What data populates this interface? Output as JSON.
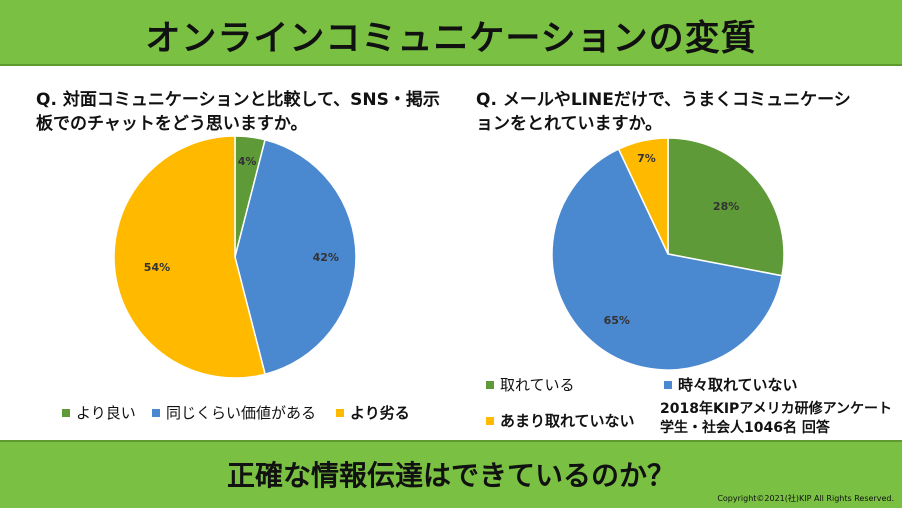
{
  "header": {
    "title": "オンラインコミュニケーションの変質"
  },
  "footer": {
    "title": "正確な情報伝達はできているのか？",
    "copyright": "Copyright©2021(社)KIP All Rights Reserved."
  },
  "chart_data": [
    {
      "type": "pie",
      "title": "Q. 対面コミュニケーションと比較して、SNS・掲示板でのチャットをどう思いますか。",
      "categories": [
        "より良い",
        "同じくらい価値がある",
        "より劣る"
      ],
      "values": [
        4,
        42,
        54
      ],
      "data_labels": [
        "4%",
        "42%",
        "54%"
      ],
      "colors": [
        "#5e9a37",
        "#4a88d0",
        "#ffba00"
      ],
      "legend": "bottom"
    },
    {
      "type": "pie",
      "title": "Q. メールやLINEだけで、うまくコミュニケーションをとれていますか。",
      "categories": [
        "取れている",
        "時々取れていない",
        "あまり取れていない"
      ],
      "values": [
        28,
        65,
        7
      ],
      "data_labels": [
        "28%",
        "65%",
        "7%"
      ],
      "colors": [
        "#5e9a37",
        "#4a88d0",
        "#ffba00"
      ],
      "legend": "bottom"
    }
  ],
  "survey_note": {
    "line1": "2018年KIPアメリカ研修アンケート",
    "line2": "学生・社会人1046名 回答"
  }
}
